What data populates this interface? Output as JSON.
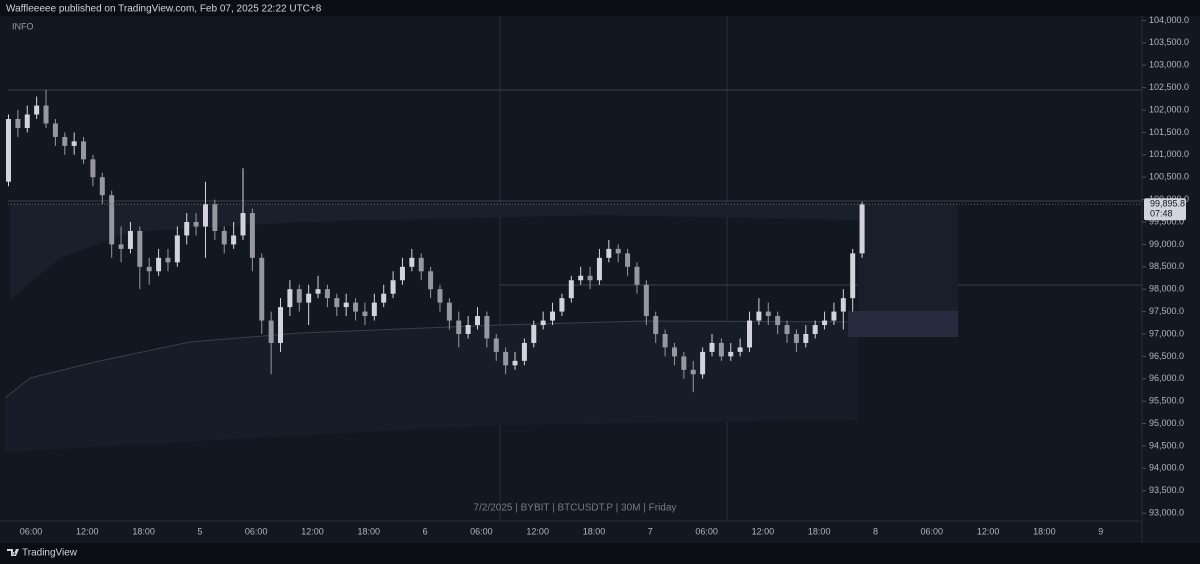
{
  "header": "Waffleeeee published on TradingView.com, Feb 07, 2025 22:22 UTC+8",
  "footer": "TradingView",
  "chart_data": {
    "type": "candlestick",
    "legend_text": "INFO",
    "watermark": "7/2/2025 | BYBIT | BTCUSDT.P | 30M | Friday",
    "last_price_label": "99,895.8",
    "countdown": "07:48",
    "up_color": "#d1d4dc",
    "down_color": "#9598a1",
    "ylim": [
      92400,
      104100
    ],
    "yticks": [
      {
        "value": 93000,
        "label": "93,000.0"
      },
      {
        "value": 93500,
        "label": "93,500.0"
      },
      {
        "value": 94000,
        "label": "94,000.0"
      },
      {
        "value": 94500,
        "label": "94,500.0"
      },
      {
        "value": 95000,
        "label": "95,000.0"
      },
      {
        "value": 95500,
        "label": "95,500.0"
      },
      {
        "value": 96000,
        "label": "96,000.0"
      },
      {
        "value": 96500,
        "label": "96,500.0"
      },
      {
        "value": 97000,
        "label": "97,000.0"
      },
      {
        "value": 97500,
        "label": "97,500.0"
      },
      {
        "value": 98000,
        "label": "98,000.0"
      },
      {
        "value": 98500,
        "label": "98,500.0"
      },
      {
        "value": 99000,
        "label": "99,000.0"
      },
      {
        "value": 99500,
        "label": "99,500.0"
      },
      {
        "value": 100000,
        "label": "100,000.0"
      },
      {
        "value": 100500,
        "label": "100,500.0"
      },
      {
        "value": 101000,
        "label": "101,000.0"
      },
      {
        "value": 101500,
        "label": "101,500.0"
      },
      {
        "value": 102000,
        "label": "102,000.0"
      },
      {
        "value": 102500,
        "label": "102,500.0"
      },
      {
        "value": 103000,
        "label": "103,000.0"
      },
      {
        "value": 103500,
        "label": "103,500.0"
      },
      {
        "value": 104000,
        "label": "104,000.0"
      }
    ],
    "xticklabels": [
      "06:00",
      "12:00",
      "18:00",
      "5",
      "06:00",
      "12:00",
      "18:00",
      "6",
      "06:00",
      "12:00",
      "18:00",
      "7",
      "06:00",
      "12:00",
      "18:00",
      "8",
      "06:00",
      "12:00",
      "18:00",
      "9"
    ],
    "open": [
      100400,
      101800,
      101600,
      101900,
      102100,
      101700,
      101400,
      101200,
      101300,
      100900,
      100500,
      100100,
      99000,
      98900,
      99300,
      98500,
      98400,
      98700,
      98600,
      99200,
      99500,
      99400,
      99900,
      99300,
      99000,
      99200,
      99700,
      98700,
      97300,
      96800,
      97600,
      98000,
      97700,
      97900,
      98000,
      97800,
      97600,
      97700,
      97500,
      97400,
      97700,
      97900,
      98200,
      98500,
      98700,
      98400,
      98000,
      97700,
      97300,
      97000,
      97200,
      97400,
      96900,
      96600,
      96300,
      96400,
      96800,
      97200,
      97300,
      97500,
      97800,
      98200,
      98300,
      98200,
      98700,
      98900,
      98800,
      98500,
      98100,
      97400,
      97000,
      96700,
      96500,
      96200,
      96100,
      96600,
      96800,
      96500,
      96600,
      96700,
      97300,
      97500,
      97400,
      97200,
      97000,
      96800,
      97000,
      97200,
      97300,
      97500,
      97800,
      98800
    ],
    "high": [
      101900,
      102000,
      102100,
      102300,
      102450,
      101800,
      101500,
      101500,
      101400,
      101000,
      100600,
      100200,
      99400,
      99500,
      99400,
      98700,
      98900,
      98900,
      99400,
      99700,
      99700,
      100400,
      100000,
      99400,
      99500,
      100700,
      99800,
      98800,
      97500,
      97800,
      98200,
      98100,
      98100,
      98300,
      98100,
      97900,
      97900,
      97800,
      97700,
      97900,
      98100,
      98400,
      98700,
      98900,
      98800,
      98500,
      98100,
      97800,
      97500,
      97400,
      97600,
      97500,
      97000,
      96700,
      96600,
      96900,
      97300,
      97500,
      97700,
      97900,
      98300,
      98500,
      98500,
      98900,
      99100,
      99000,
      98900,
      98600,
      98200,
      97500,
      97100,
      96800,
      96600,
      96400,
      96700,
      97000,
      96900,
      96800,
      96900,
      97500,
      97800,
      97700,
      97500,
      97300,
      97100,
      97200,
      97300,
      97500,
      97700,
      98000,
      98900,
      99950
    ],
    "low": [
      100300,
      101400,
      101500,
      101800,
      101600,
      101200,
      101000,
      101000,
      100800,
      100300,
      99900,
      98700,
      98600,
      98800,
      98000,
      98100,
      98300,
      98400,
      98500,
      99000,
      99200,
      98700,
      99100,
      98800,
      98900,
      99100,
      98400,
      97000,
      96100,
      96600,
      97400,
      97500,
      97200,
      97800,
      97600,
      97400,
      97400,
      97300,
      97200,
      97300,
      97600,
      97800,
      98100,
      98400,
      98200,
      97800,
      97500,
      97100,
      96700,
      96900,
      97100,
      96700,
      96400,
      96100,
      96200,
      96300,
      96700,
      97100,
      97200,
      97400,
      97700,
      98100,
      98000,
      98100,
      98600,
      98600,
      98300,
      97900,
      97200,
      96800,
      96500,
      96300,
      96000,
      95700,
      96000,
      96500,
      96400,
      96400,
      96500,
      96600,
      97200,
      97200,
      97000,
      96800,
      96600,
      96700,
      96900,
      97100,
      97200,
      97100,
      97500,
      98700
    ],
    "close": [
      101800,
      101600,
      101900,
      102100,
      101700,
      101400,
      101200,
      101300,
      100900,
      100500,
      100100,
      99000,
      98900,
      99300,
      98500,
      98400,
      98700,
      98600,
      99200,
      99500,
      99400,
      99900,
      99300,
      99000,
      99200,
      99700,
      98700,
      97300,
      96800,
      97600,
      98000,
      97700,
      97900,
      98000,
      97800,
      97600,
      97700,
      97500,
      97400,
      97700,
      97900,
      98200,
      98500,
      98700,
      98400,
      98000,
      97700,
      97300,
      97000,
      97200,
      97400,
      96900,
      96600,
      96300,
      96400,
      96800,
      97200,
      97300,
      97500,
      97800,
      98200,
      98300,
      98200,
      98700,
      98900,
      98800,
      98500,
      98100,
      97400,
      97000,
      96700,
      96500,
      96200,
      96100,
      96600,
      96800,
      96500,
      96600,
      96700,
      97300,
      97500,
      97400,
      97200,
      97000,
      96800,
      97000,
      97200,
      97300,
      97500,
      97800,
      98800,
      99895.8
    ]
  }
}
